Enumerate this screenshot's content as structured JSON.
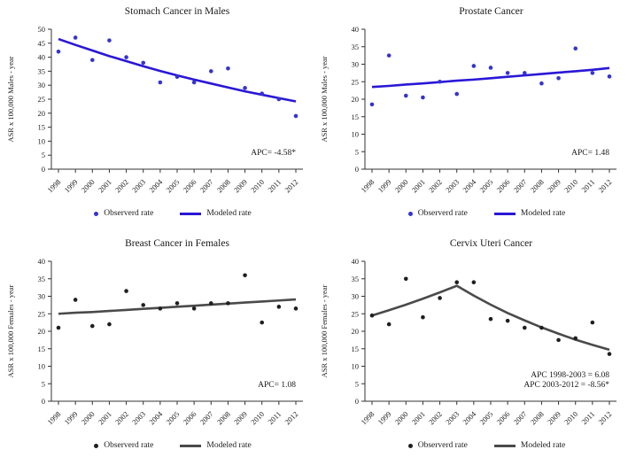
{
  "legend": {
    "observed_label": "Observerd rate",
    "modeled_label": "Modeled rate"
  },
  "chart_data": [
    {
      "type": "scatter+line",
      "title": "Stomach Cancer in Males",
      "xlabel": "",
      "ylabel": "ASR x 100,000  Males - year",
      "ylim": [
        0,
        50
      ],
      "ytick_step": 5,
      "categories": [
        1998,
        1999,
        2000,
        2001,
        2002,
        2003,
        2004,
        2005,
        2006,
        2007,
        2008,
        2009,
        2010,
        2011,
        2012
      ],
      "series": [
        {
          "name": "Observerd rate",
          "type": "scatter",
          "values": [
            42,
            47,
            39,
            46,
            40,
            38,
            31,
            33,
            31,
            35,
            36,
            29,
            27,
            25,
            19
          ]
        },
        {
          "name": "Modeled rate",
          "type": "line",
          "values": [
            46.5,
            44.4,
            42.4,
            40.4,
            38.6,
            36.8,
            35.1,
            33.5,
            32.0,
            30.6,
            29.2,
            27.8,
            26.6,
            25.4,
            24.2
          ]
        }
      ],
      "annotations": [
        "APC= -4.58*"
      ],
      "dot_color": "#3434cf",
      "line_color": "#2a17d6"
    },
    {
      "type": "scatter+line",
      "title": "Prostate Cancer",
      "xlabel": "",
      "ylabel": "ASR x 100,000  Males - year",
      "ylim": [
        0,
        40
      ],
      "ytick_step": 5,
      "categories": [
        1998,
        1999,
        2000,
        2001,
        2002,
        2003,
        2004,
        2005,
        2006,
        2007,
        2008,
        2009,
        2010,
        2011,
        2012
      ],
      "series": [
        {
          "name": "Observerd rate",
          "type": "scatter",
          "values": [
            18.5,
            32.5,
            21,
            20.5,
            25,
            21.5,
            29.5,
            29,
            27.5,
            27.5,
            24.5,
            26,
            34.5,
            27.5,
            26.5
          ]
        },
        {
          "name": "Modeled rate",
          "type": "line",
          "values": [
            23.5,
            23.8,
            24.2,
            24.5,
            24.9,
            25.3,
            25.6,
            26.0,
            26.4,
            26.8,
            27.2,
            27.6,
            28.0,
            28.4,
            28.9
          ]
        }
      ],
      "annotations": [
        "APC= 1.48"
      ],
      "dot_color": "#3434cf",
      "line_color": "#2a17d6"
    },
    {
      "type": "scatter+line",
      "title": "Breast Cancer in Females",
      "xlabel": "",
      "ylabel": "ASR x 100,000  Females - year",
      "ylim": [
        0,
        40
      ],
      "ytick_step": 5,
      "categories": [
        1998,
        1999,
        2000,
        2001,
        2002,
        2003,
        2004,
        2005,
        2006,
        2007,
        2008,
        2009,
        2010,
        2011,
        2012
      ],
      "series": [
        {
          "name": "Observerd rate",
          "type": "scatter",
          "values": [
            21,
            29,
            21.5,
            22,
            31.5,
            27.5,
            26.5,
            28,
            26.5,
            28,
            28,
            36,
            22.5,
            27,
            26.5
          ]
        },
        {
          "name": "Modeled rate",
          "type": "line",
          "values": [
            25.0,
            25.3,
            25.5,
            25.8,
            26.1,
            26.4,
            26.7,
            27.0,
            27.3,
            27.6,
            27.9,
            28.2,
            28.5,
            28.8,
            29.1
          ]
        }
      ],
      "annotations": [
        "APC= 1.08"
      ],
      "dot_color": "#1f1f1f",
      "line_color": "#4a4a4a"
    },
    {
      "type": "scatter+line",
      "title": "Cervix Uteri Cancer",
      "xlabel": "",
      "ylabel": "ASR x 100,000  Females - year",
      "ylim": [
        0,
        40
      ],
      "ytick_step": 5,
      "categories": [
        1998,
        1999,
        2000,
        2001,
        2002,
        2003,
        2004,
        2005,
        2006,
        2007,
        2008,
        2009,
        2010,
        2011,
        2012
      ],
      "series": [
        {
          "name": "Observerd rate",
          "type": "scatter",
          "values": [
            24.5,
            22,
            35,
            24,
            29.5,
            34,
            34,
            23.5,
            23,
            21,
            21,
            17.5,
            18,
            22.5,
            13.5
          ]
        },
        {
          "name": "Modeled rate",
          "type": "line",
          "values": [
            24.5,
            26.0,
            27.6,
            29.3,
            31.1,
            33.0,
            30.2,
            27.6,
            25.2,
            23.1,
            21.1,
            19.3,
            17.6,
            16.1,
            14.7
          ]
        }
      ],
      "annotations": [
        "APC 1998-2003 = 6.08",
        "APC 2003-2012 = -8.56*"
      ],
      "dot_color": "#1f1f1f",
      "line_color": "#4a4a4a"
    }
  ]
}
